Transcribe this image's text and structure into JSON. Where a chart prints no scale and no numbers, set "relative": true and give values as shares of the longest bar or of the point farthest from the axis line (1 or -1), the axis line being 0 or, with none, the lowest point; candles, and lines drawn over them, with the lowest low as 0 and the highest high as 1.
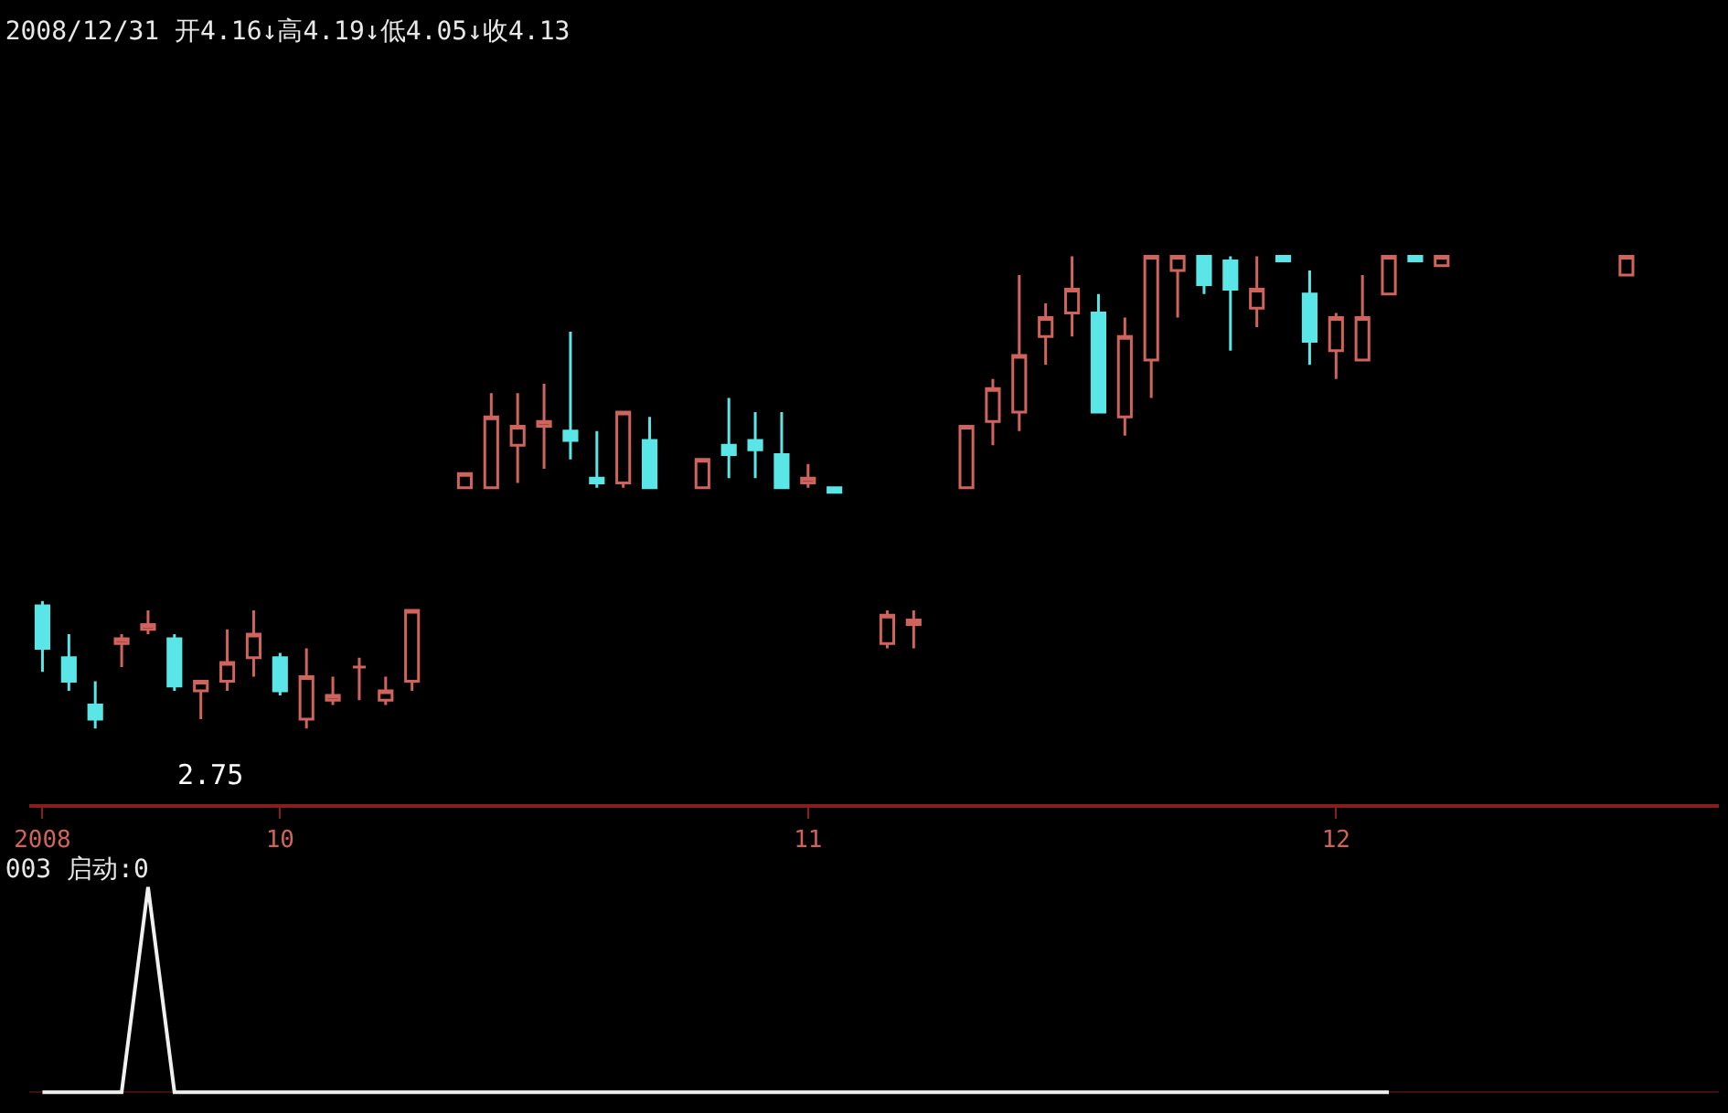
{
  "chart_data": [
    {
      "type": "candlestick",
      "title": "2008/12/31 开4.16↓高4.19↓低4.05↓收4.13",
      "relative": true,
      "categories": [
        "2008",
        null,
        null,
        null,
        null,
        null,
        null,
        null,
        null,
        "10",
        null,
        null,
        null,
        null,
        null,
        null,
        null,
        null,
        null,
        null,
        null,
        null,
        null,
        null,
        null,
        null,
        null,
        null,
        null,
        "11",
        null,
        null,
        null,
        null,
        null,
        null,
        null,
        null,
        null,
        null,
        null,
        null,
        null,
        null,
        null,
        null,
        null,
        null,
        null,
        "12",
        null,
        null,
        null,
        null,
        null,
        null,
        null,
        null,
        null,
        null,
        null,
        null,
        null,
        null
      ],
      "ohlc": [
        [
          0.26,
          0.27,
          0.12,
          0.17
        ],
        [
          0.15,
          0.2,
          0.08,
          0.1
        ],
        [
          0.05,
          0.1,
          0,
          0.02
        ],
        [
          0.18,
          0.2,
          0.13,
          0.19
        ],
        [
          0.21,
          0.25,
          0.2,
          0.22
        ],
        [
          0.19,
          0.2,
          0.08,
          0.09
        ],
        [
          0.08,
          0.1,
          0.02,
          0.1
        ],
        [
          0.1,
          0.21,
          0.08,
          0.14
        ],
        [
          0.15,
          0.25,
          0.11,
          0.2
        ],
        [
          0.15,
          0.16,
          0.07,
          0.08
        ],
        [
          0.02,
          0.17,
          0,
          0.11
        ],
        [
          0.06,
          0.11,
          0.05,
          0.07
        ],
        [
          0.13,
          0.15,
          0.06,
          0.13
        ],
        [
          0.06,
          0.11,
          0.05,
          0.08
        ],
        [
          0.1,
          0.25,
          0.08,
          0.25
        ],
        null,
        [
          0.51,
          0.54,
          0.51,
          0.54
        ],
        [
          0.51,
          0.71,
          0.51,
          0.66
        ],
        [
          0.6,
          0.71,
          0.52,
          0.64
        ],
        [
          0.64,
          0.73,
          0.55,
          0.65
        ],
        [
          0.63,
          0.84,
          0.57,
          0.61
        ],
        [
          0.53,
          0.63,
          0.51,
          0.52
        ],
        [
          0.52,
          0.67,
          0.51,
          0.67
        ],
        [
          0.61,
          0.66,
          0.51,
          0.51
        ],
        null,
        [
          0.51,
          0.57,
          0.51,
          0.57
        ],
        [
          0.6,
          0.7,
          0.53,
          0.58
        ],
        [
          0.61,
          0.67,
          0.53,
          0.59
        ],
        [
          0.58,
          0.67,
          0.51,
          0.51
        ],
        [
          0.52,
          0.56,
          0.51,
          0.53
        ],
        [
          0.51,
          0.51,
          0.5,
          0.5
        ],
        null,
        [
          0.18,
          0.25,
          0.17,
          0.24
        ],
        [
          0.22,
          0.25,
          0.17,
          0.23
        ],
        null,
        [
          0.51,
          0.64,
          0.51,
          0.64
        ],
        [
          0.65,
          0.74,
          0.6,
          0.72
        ],
        [
          0.67,
          0.96,
          0.63,
          0.79
        ],
        [
          0.83,
          0.9,
          0.77,
          0.87
        ],
        [
          0.88,
          1,
          0.83,
          0.93
        ],
        [
          0.88,
          0.92,
          0.67,
          0.67
        ],
        [
          0.66,
          0.87,
          0.62,
          0.83
        ],
        [
          0.78,
          1,
          0.7,
          1
        ],
        [
          0.97,
          1,
          0.87,
          1
        ],
        [
          1,
          1,
          0.92,
          0.94
        ],
        [
          0.99,
          1,
          0.8,
          0.93
        ],
        [
          0.89,
          1,
          0.85,
          0.93
        ],
        [
          1,
          1,
          0.99,
          0.99
        ],
        [
          0.92,
          0.97,
          0.77,
          0.82
        ],
        [
          0.8,
          0.88,
          0.74,
          0.87
        ],
        [
          0.78,
          0.96,
          0.78,
          0.87
        ],
        [
          0.92,
          1,
          0.92,
          1
        ],
        [
          1,
          1,
          0.99,
          0.99
        ],
        [
          0.98,
          1,
          0.98,
          1
        ],
        null,
        null,
        null,
        null,
        null,
        null,
        [
          0.96,
          1,
          0.96,
          1
        ],
        null,
        null,
        null
      ],
      "colors": [
        "#5ae6e6",
        "#5ae6e6",
        "#5ae6e6",
        "#d0645c",
        "#d0645c",
        "#5ae6e6",
        "#d0645c",
        "#d0645c",
        "#d0645c",
        "#5ae6e6",
        "#d0645c",
        "#d0645c",
        "#d0645c",
        "#d0645c",
        "#d0645c",
        null,
        "#d0645c",
        "#d0645c",
        "#d0645c",
        "#d0645c",
        "#5ae6e6",
        "#5ae6e6",
        "#d0645c",
        "#5ae6e6",
        null,
        "#d0645c",
        "#5ae6e6",
        "#5ae6e6",
        "#5ae6e6",
        "#d0645c",
        "#5ae6e6",
        null,
        "#d0645c",
        "#d0645c",
        null,
        "#d0645c",
        "#d0645c",
        "#d0645c",
        "#d0645c",
        "#d0645c",
        "#5ae6e6",
        "#d0645c",
        "#d0645c",
        "#d0645c",
        "#5ae6e6",
        "#5ae6e6",
        "#d0645c",
        "#5ae6e6",
        "#5ae6e6",
        "#d0645c",
        "#d0645c",
        "#d0645c",
        "#5ae6e6",
        "#d0645c",
        null,
        null,
        null,
        null,
        null,
        null,
        "#d0645c",
        null,
        null,
        null
      ],
      "annotations": [
        "2.75"
      ]
    },
    {
      "type": "line",
      "title": "003 启动:0",
      "relative": true,
      "categories": [
        null,
        null,
        null,
        null,
        null,
        null,
        null,
        null,
        null,
        null,
        null,
        null,
        null,
        null,
        null,
        null,
        null,
        null,
        null,
        null,
        null,
        null,
        null,
        null,
        null,
        null,
        null,
        null,
        null,
        null,
        null,
        null,
        null,
        null,
        null,
        null,
        null,
        null,
        null,
        null,
        null,
        null,
        null,
        null,
        null,
        null,
        null,
        null,
        null,
        null,
        null,
        null
      ],
      "series": [
        {
          "color": "#f0f0f0",
          "values": [
            0,
            0,
            0,
            0,
            1,
            0,
            0,
            0,
            0,
            0,
            0,
            0,
            0,
            0,
            0,
            0,
            0,
            0,
            0,
            0,
            0,
            0,
            0,
            0,
            0,
            0,
            0,
            0,
            0,
            0,
            0,
            0,
            0,
            0,
            0,
            0,
            0,
            0,
            0,
            0,
            0,
            0,
            0,
            0,
            0,
            0,
            0,
            0,
            0,
            0,
            0,
            0
          ]
        }
      ]
    }
  ]
}
